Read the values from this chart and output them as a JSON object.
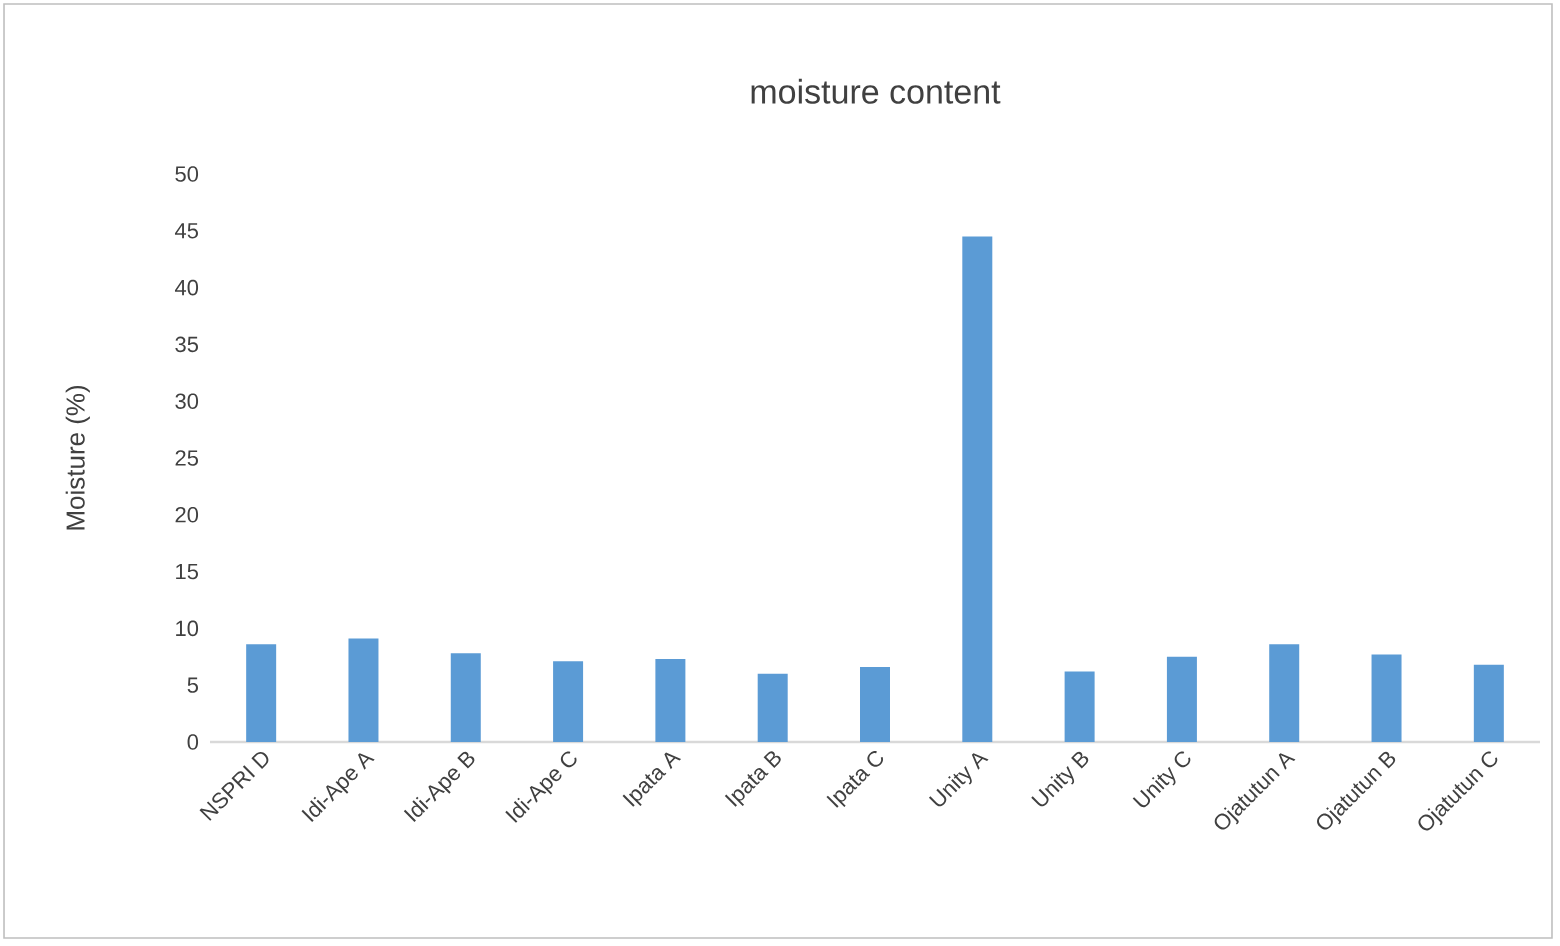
{
  "chart_data": {
    "type": "bar",
    "title": "moisture content",
    "ylabel": "Moisture (%)",
    "categories": [
      "NSPRI D",
      "Idi-Ape A",
      "Idi-Ape B",
      "Idi-Ape C",
      "Ipata A",
      "Ipata B",
      "Ipata C",
      "Unity A",
      "Unity B",
      "Unity C",
      "Ojatutun A",
      "Ojatutun B",
      "Ojatutun C"
    ],
    "values": [
      8.6,
      9.1,
      7.8,
      7.1,
      7.3,
      6.0,
      6.6,
      44.5,
      6.2,
      7.5,
      8.6,
      7.7,
      6.8
    ],
    "color": "#5b9bd5",
    "ylim": [
      0,
      50
    ],
    "yticks": [
      0,
      5,
      10,
      15,
      20,
      25,
      30,
      35,
      40,
      45,
      50
    ]
  }
}
